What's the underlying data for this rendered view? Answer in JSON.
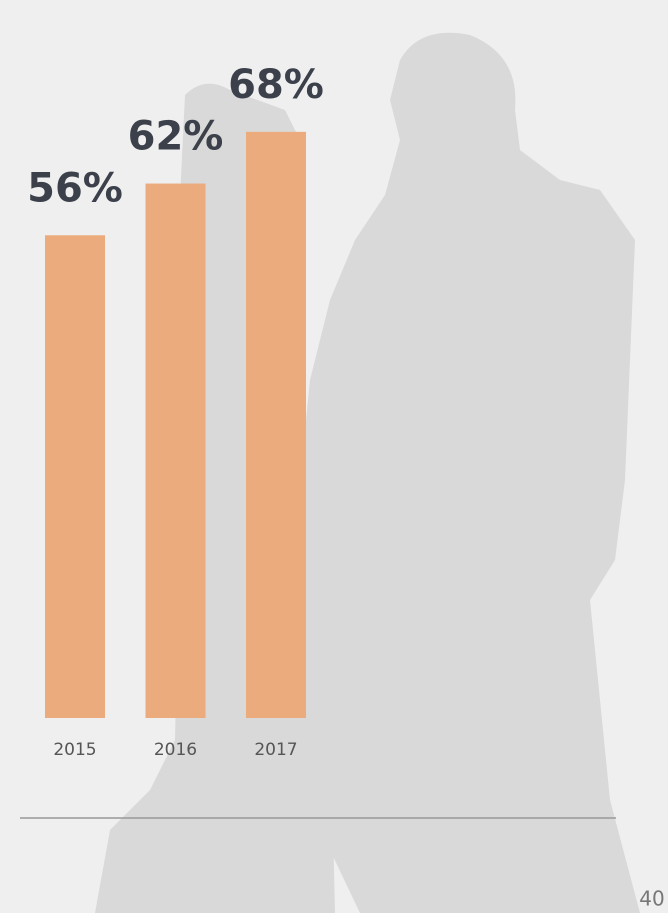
{
  "chart_data": {
    "type": "bar",
    "categories": [
      "2015",
      "2016",
      "2017"
    ],
    "values": [
      56,
      62,
      68
    ],
    "value_labels": [
      "56%",
      "62%",
      "68%"
    ],
    "color": "#ebab7c"
  },
  "page_number": "40"
}
